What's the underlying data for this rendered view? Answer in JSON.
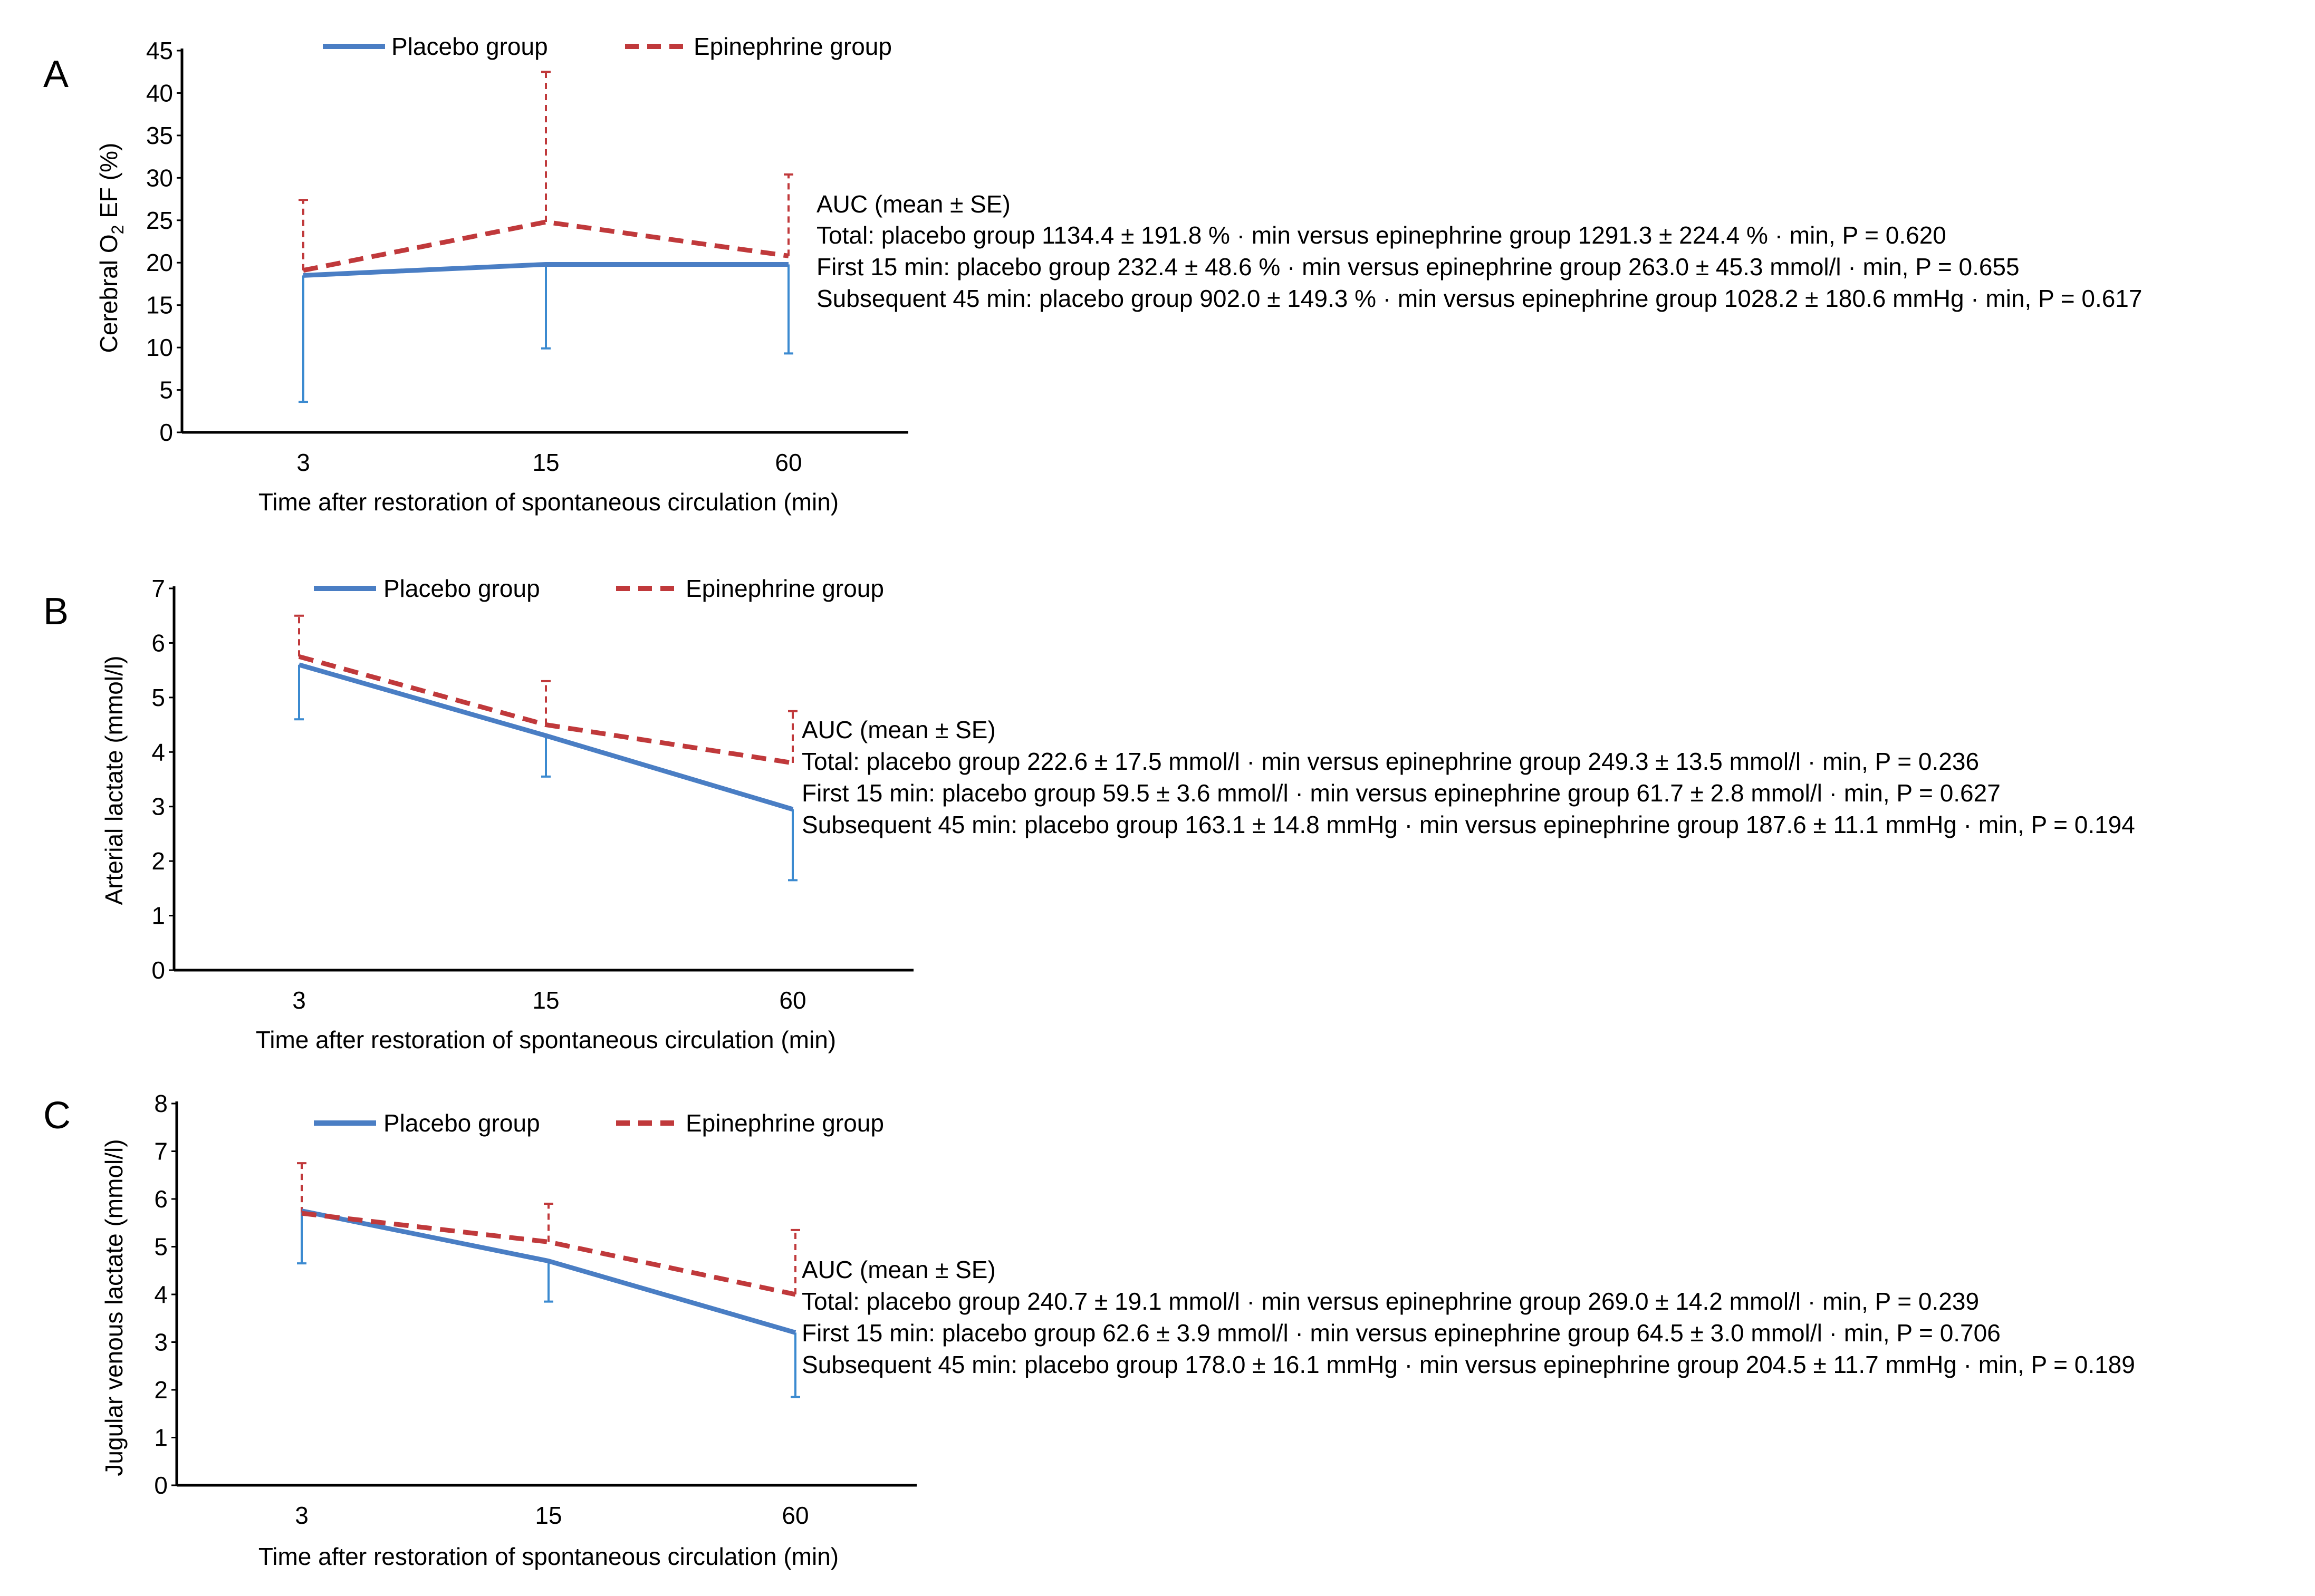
{
  "legend": {
    "placebo_label": "Placebo group",
    "epinephrine_label": "Epinephrine group"
  },
  "colors": {
    "placebo": "#4a7ec4",
    "placebo_error": "#3b8ad0",
    "epinephrine": "#c0393b",
    "axis": "#000000"
  },
  "chart_data": [
    {
      "panel": "A",
      "type": "line",
      "categories": [
        "3",
        "15",
        "60"
      ],
      "ylabel": "Cerebral O2 EF (%)",
      "ylabel_parts": {
        "pre": "Cerebral O",
        "sub": "2",
        "post": " EF (%)"
      },
      "xlabel": "Time after restoration of spontaneous circulation (min)",
      "ylim": [
        0,
        45
      ],
      "yticks": [
        0,
        5,
        10,
        15,
        20,
        25,
        30,
        35,
        40,
        45
      ],
      "series": [
        {
          "name": "Placebo group",
          "values": [
            18.5,
            19.8,
            19.8
          ],
          "error_lower": [
            3.6,
            9.9,
            9.3
          ],
          "style": "solid"
        },
        {
          "name": "Epinephrine group",
          "values": [
            19.1,
            24.8,
            20.8
          ],
          "error_upper": [
            27.4,
            42.5,
            30.4
          ],
          "style": "dashed"
        }
      ],
      "auc": {
        "title": "AUC (mean ± SE)",
        "lines": [
          "Total: placebo group 1134.4 ± 191.8 % · min versus epinephrine group 1291.3 ± 224.4 % · min, P = 0.620",
          "First 15 min: placebo group 232.4 ± 48.6 % · min versus epinephrine group 263.0 ± 45.3 mmol/l · min, P = 0.655",
          "Subsequent 45 min: placebo group 902.0 ± 149.3 % · min versus epinephrine group 1028.2 ± 180.6 mmHg · min, P = 0.617"
        ]
      }
    },
    {
      "panel": "B",
      "type": "line",
      "categories": [
        "3",
        "15",
        "60"
      ],
      "ylabel": "Arterial lactate (mmol/l)",
      "xlabel": "Time after restoration of spontaneous circulation (min)",
      "ylim": [
        0,
        7
      ],
      "yticks": [
        0,
        1,
        2,
        3,
        4,
        5,
        6,
        7
      ],
      "series": [
        {
          "name": "Placebo group",
          "values": [
            5.6,
            4.3,
            2.95
          ],
          "error_lower": [
            4.6,
            3.55,
            1.65
          ],
          "style": "solid"
        },
        {
          "name": "Epinephrine group",
          "values": [
            5.75,
            4.5,
            3.8
          ],
          "error_upper": [
            6.5,
            5.3,
            4.75
          ],
          "style": "dashed"
        }
      ],
      "auc": {
        "title": "AUC (mean ± SE)",
        "lines": [
          "Total: placebo group 222.6 ± 17.5 mmol/l · min versus epinephrine group 249.3 ± 13.5 mmol/l · min, P = 0.236",
          "First 15 min: placebo group 59.5 ± 3.6 mmol/l · min versus epinephrine group 61.7 ± 2.8 mmol/l · min, P = 0.627",
          "Subsequent 45 min: placebo group 163.1 ± 14.8 mmHg · min versus epinephrine group 187.6 ± 11.1 mmHg · min, P = 0.194"
        ]
      }
    },
    {
      "panel": "C",
      "type": "line",
      "categories": [
        "3",
        "15",
        "60"
      ],
      "ylabel": "Jugular venous lactate (mmol/l)",
      "xlabel": "Time after restoration of spontaneous circulation (min)",
      "ylim": [
        0,
        8
      ],
      "yticks": [
        0,
        1,
        2,
        3,
        4,
        5,
        6,
        7,
        8
      ],
      "series": [
        {
          "name": "Placebo group",
          "values": [
            5.75,
            4.7,
            3.2
          ],
          "error_lower": [
            4.65,
            3.85,
            1.85
          ],
          "style": "solid"
        },
        {
          "name": "Epinephrine group",
          "values": [
            5.7,
            5.1,
            4.0
          ],
          "error_upper": [
            6.75,
            5.9,
            5.35
          ],
          "style": "dashed"
        }
      ],
      "auc": {
        "title": "AUC (mean ± SE)",
        "lines": [
          "Total: placebo group 240.7 ± 19.1 mmol/l · min versus epinephrine group 269.0 ± 14.2 mmol/l · min, P = 0.239",
          "First 15 min: placebo group 62.6 ± 3.9 mmol/l · min versus epinephrine group 64.5 ± 3.0 mmol/l · min, P = 0.706",
          "Subsequent 45 min: placebo group 178.0 ± 16.1 mmHg · min versus epinephrine group 204.5 ± 11.7 mmHg · min, P = 0.189"
        ]
      }
    }
  ]
}
